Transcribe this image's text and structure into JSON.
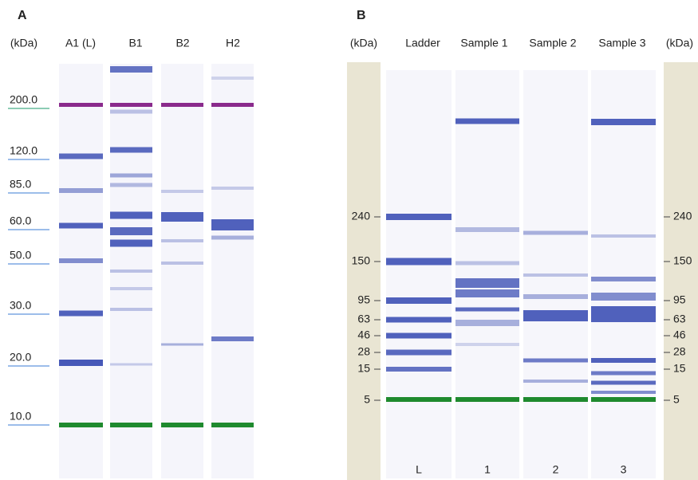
{
  "panel_a": {
    "label": "A",
    "unit": "(kDa)",
    "lanes": [
      "A1 (L)",
      "B1",
      "B2",
      "H2"
    ],
    "markers": [
      "200.0",
      "120.0",
      "85.0",
      "60.0",
      "50.0",
      "30.0",
      "20.0",
      "10.0"
    ]
  },
  "panel_b": {
    "label": "B",
    "unit_left": "(kDa)",
    "unit_right": "(kDa)",
    "lanes": [
      "Ladder",
      "Sample 1",
      "Sample 2",
      "Sample 3"
    ],
    "markers": [
      240,
      150,
      95,
      63,
      46,
      28,
      15,
      5
    ],
    "lane_ids": [
      "L",
      "1",
      "2",
      "3"
    ]
  }
}
